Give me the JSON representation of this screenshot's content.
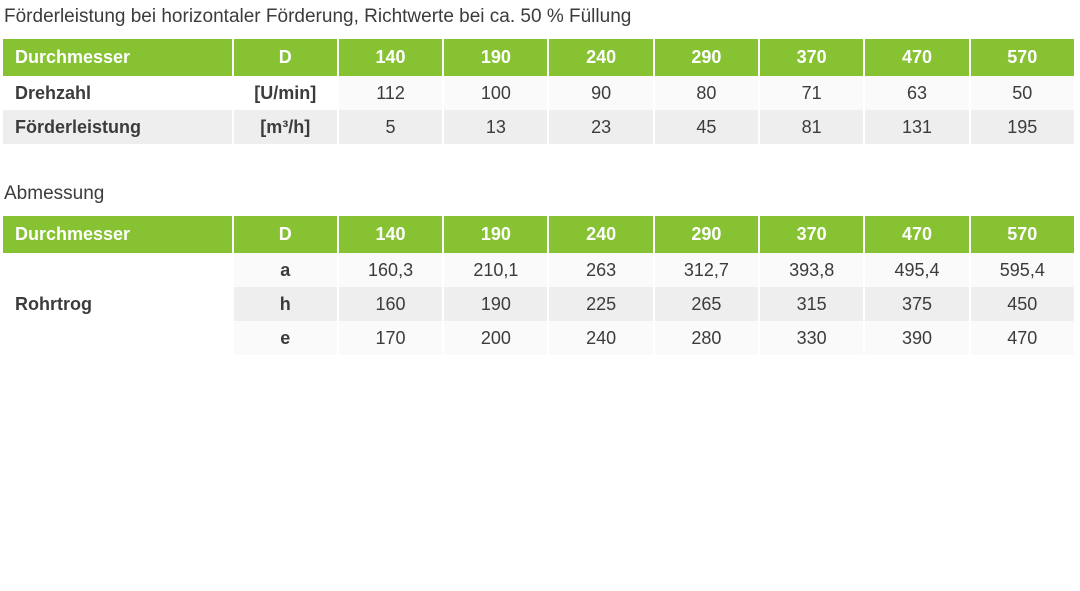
{
  "table1": {
    "title": "Förderleistung bei horizontaler Förderung, Richtwerte bei ca. 50 % Füllung",
    "header": [
      "Durchmesser",
      "D",
      "140",
      "190",
      "240",
      "290",
      "370",
      "470",
      "570"
    ],
    "rows": [
      {
        "label": "Drehzahl",
        "unit": "[U/min]",
        "values": [
          "112",
          "100",
          "90",
          "80",
          "71",
          "63",
          "50"
        ]
      },
      {
        "label": "Förderleistung",
        "unit": "[m³/h]",
        "values": [
          "5",
          "13",
          "23",
          "45",
          "81",
          "131",
          "195"
        ]
      }
    ]
  },
  "table2": {
    "title": "Abmessung",
    "header": [
      "Durchmesser",
      "D",
      "140",
      "190",
      "240",
      "290",
      "370",
      "470",
      "570"
    ],
    "group_label": "Rohrtrog",
    "rows": [
      {
        "unit": "a",
        "values": [
          "160,3",
          "210,1",
          "263",
          "312,7",
          "393,8",
          "495,4",
          "595,4"
        ]
      },
      {
        "unit": "h",
        "values": [
          "160",
          "190",
          "225",
          "265",
          "315",
          "375",
          "450"
        ]
      },
      {
        "unit": "e",
        "values": [
          "170",
          "200",
          "240",
          "280",
          "330",
          "390",
          "470"
        ]
      }
    ]
  },
  "colors": {
    "header_green": "#86c232",
    "row_shade": "#eeeeee",
    "text": "#3c3c3c"
  }
}
